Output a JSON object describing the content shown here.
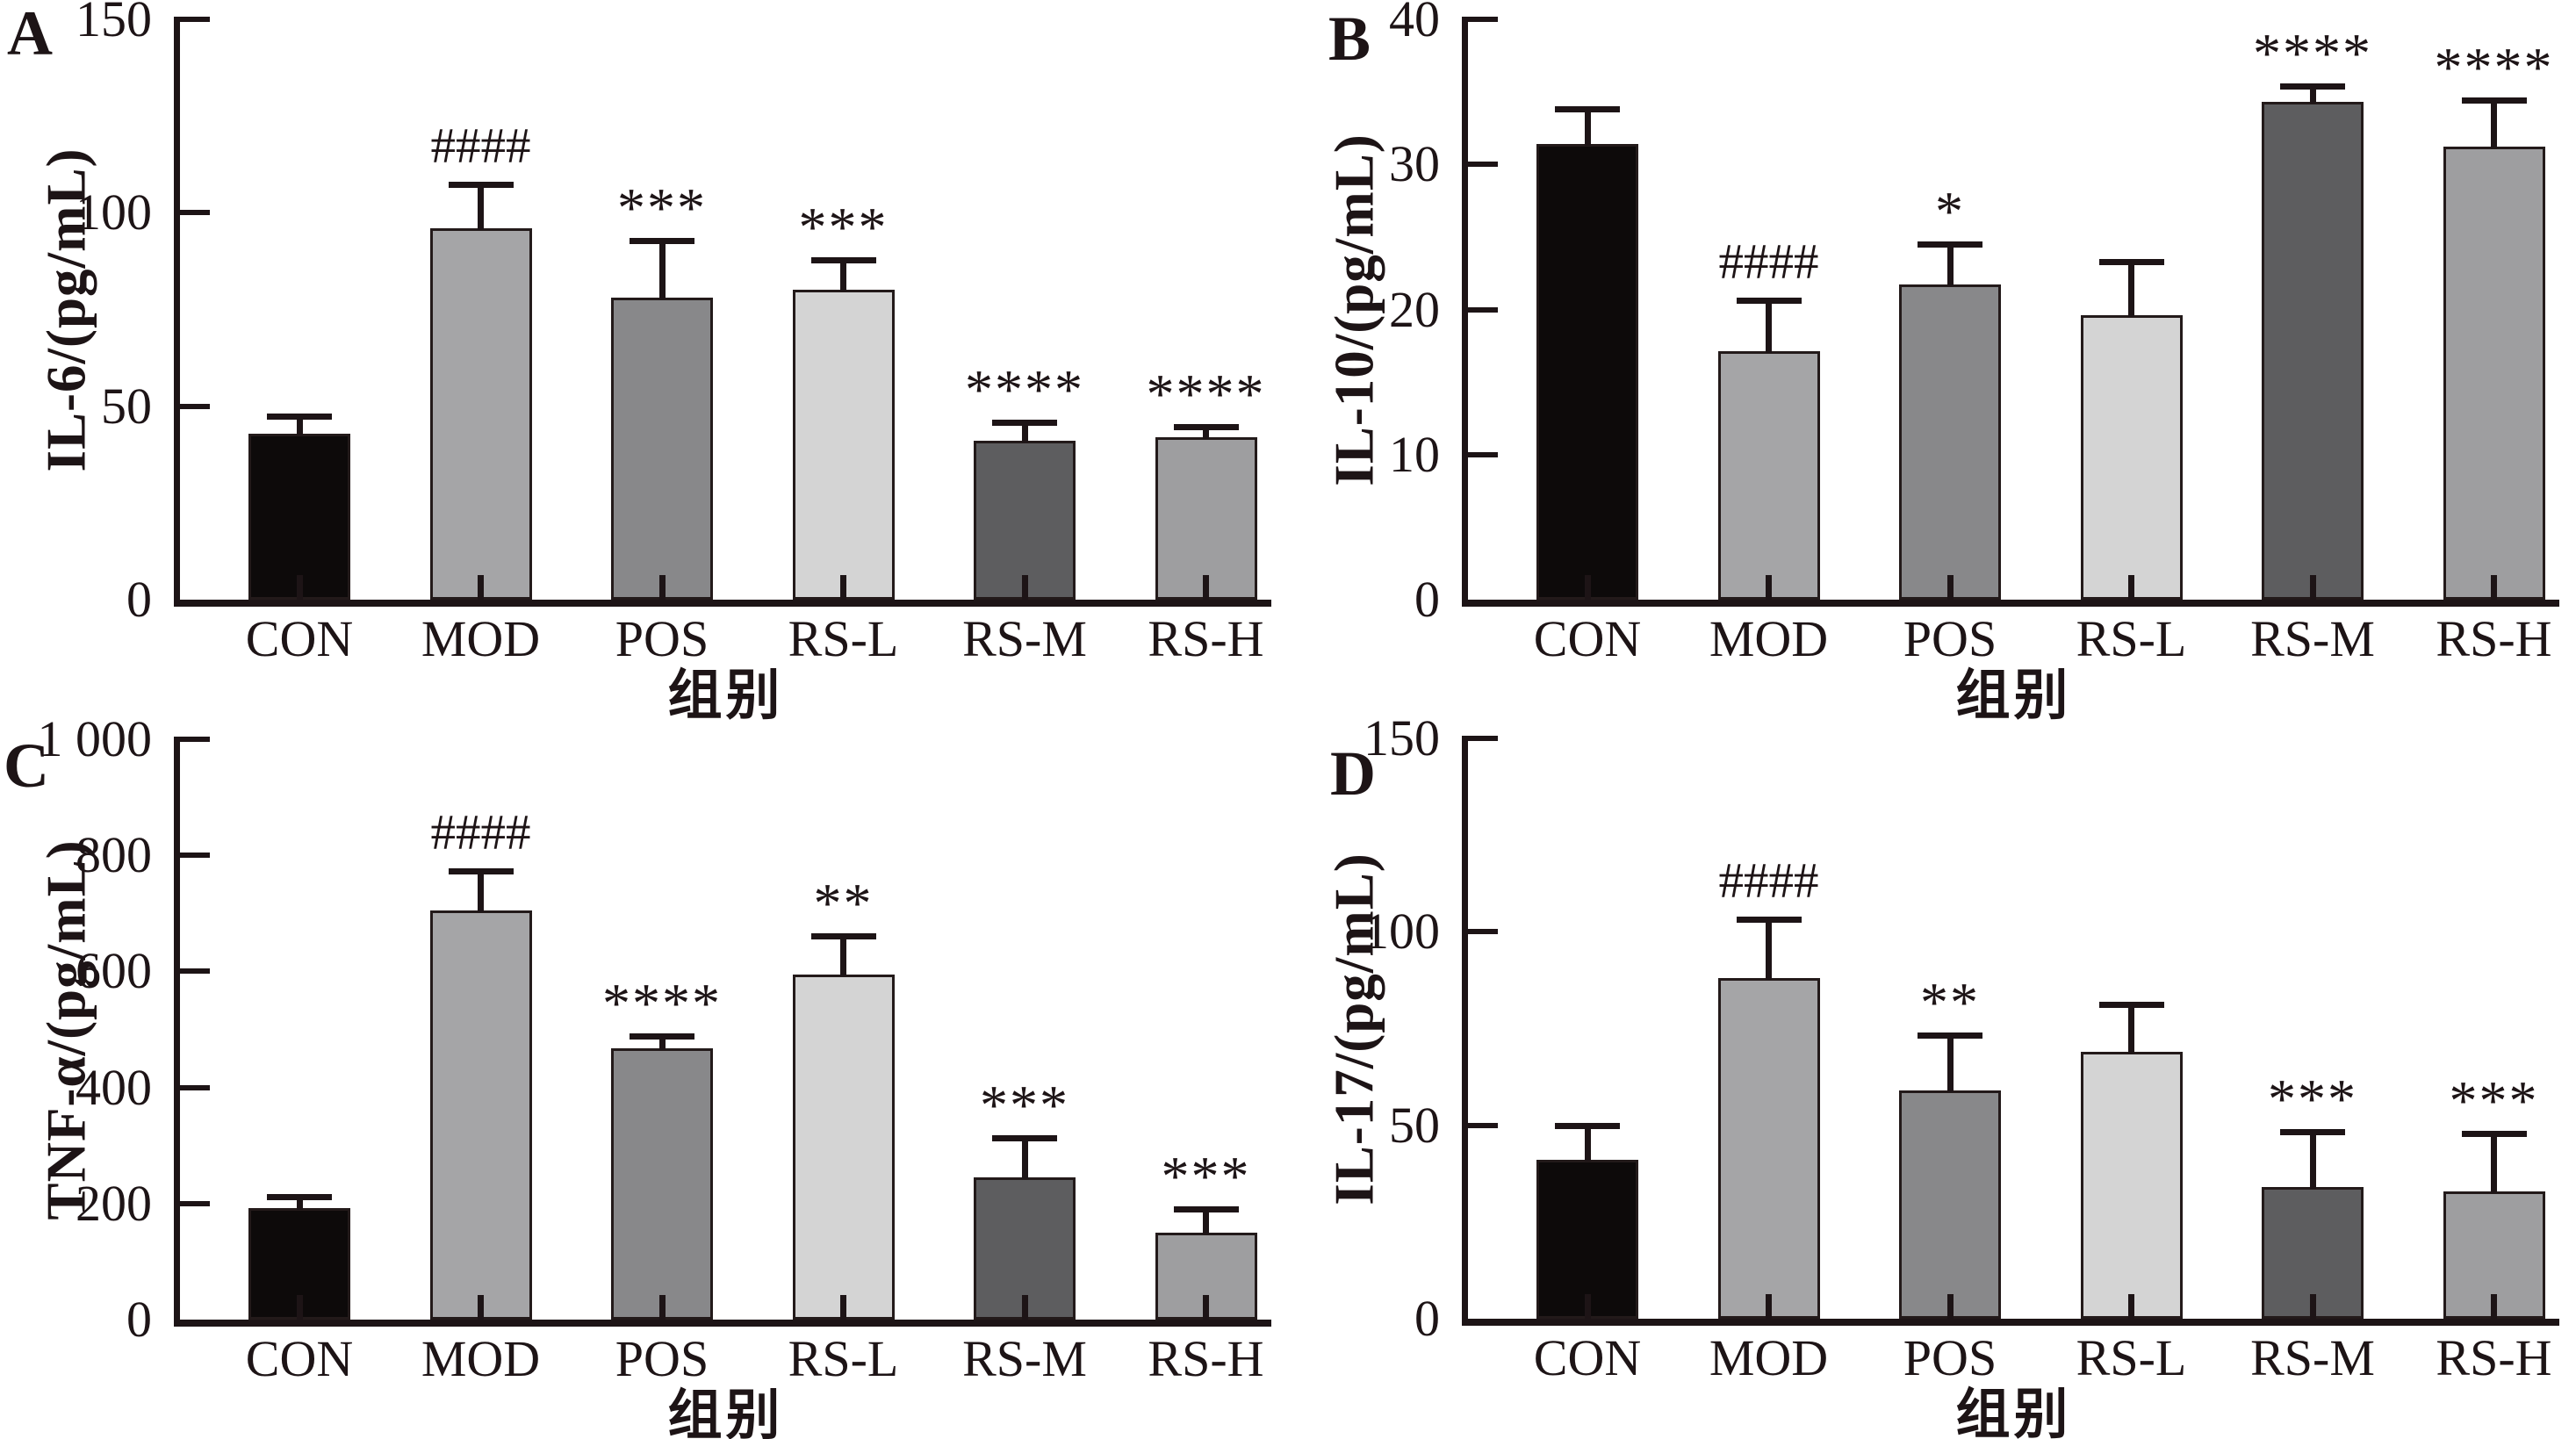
{
  "figure": {
    "background": "#ffffff",
    "categories": [
      "CON",
      "MOD",
      "POS",
      "RS-L",
      "RS-M",
      "RS-H"
    ],
    "bar_colors": [
      "#0d0a0a",
      "#a5a5a7",
      "#88888a",
      "#d4d4d4",
      "#5d5d5f",
      "#9e9ea0"
    ],
    "bar_border_color": "#231a1a",
    "axis_color": "#1d1416"
  },
  "chart_data": [
    {
      "panel": "A",
      "type": "bar",
      "title": "",
      "ylabel": "IL-6/(pg/mL)",
      "xlabel": "组别",
      "ylim": [
        0,
        150
      ],
      "yticks": [
        0,
        50,
        100,
        150
      ],
      "ytick_labels": [
        "0",
        "50",
        "100",
        "150"
      ],
      "grid": false,
      "legend": "none",
      "categories": [
        "CON",
        "MOD",
        "POS",
        "RS-L",
        "RS-M",
        "RS-H"
      ],
      "values": [
        43,
        96,
        78,
        80,
        41,
        42
      ],
      "errors": [
        5,
        12,
        15.5,
        8.5,
        5.5,
        3.5
      ],
      "significance": [
        "",
        "####",
        "***",
        "***",
        "****",
        "****"
      ]
    },
    {
      "panel": "B",
      "type": "bar",
      "title": "",
      "ylabel": "IL-10/(pg/mL)",
      "xlabel": "组别",
      "ylim": [
        0,
        40
      ],
      "yticks": [
        0,
        10,
        20,
        30,
        40
      ],
      "ytick_labels": [
        "0",
        "10",
        "20",
        "30",
        "40"
      ],
      "grid": false,
      "legend": "none",
      "categories": [
        "CON",
        "MOD",
        "POS",
        "RS-L",
        "RS-M",
        "RS-H"
      ],
      "values": [
        31.4,
        17.1,
        21.7,
        19.6,
        34.3,
        31.2
      ],
      "errors": [
        2.6,
        3.7,
        3.0,
        3.9,
        1.3,
        3.4
      ],
      "significance": [
        "",
        "####",
        "*",
        "",
        "****",
        "****"
      ]
    },
    {
      "panel": "C",
      "type": "bar",
      "title": "",
      "ylabel": "TNF-α/(pg/mL)",
      "xlabel": "组别",
      "ylim": [
        0,
        1000
      ],
      "yticks": [
        0,
        200,
        400,
        600,
        800,
        1000
      ],
      "ytick_labels": [
        "0",
        "200",
        "400",
        "600",
        "800",
        "1 000"
      ],
      "grid": false,
      "legend": "none",
      "categories": [
        "CON",
        "MOD",
        "POS",
        "RS-L",
        "RS-M",
        "RS-H"
      ],
      "values": [
        192,
        705,
        468,
        595,
        245,
        150
      ],
      "errors": [
        24,
        72,
        25,
        70,
        72,
        45
      ],
      "significance": [
        "",
        "####",
        "****",
        "**",
        "***",
        "***"
      ]
    },
    {
      "panel": "D",
      "type": "bar",
      "title": "",
      "ylabel": "IL-17/(pg/mL)",
      "xlabel": "组别",
      "ylim": [
        0,
        150
      ],
      "yticks": [
        0,
        50,
        100,
        150
      ],
      "ytick_labels": [
        "0",
        "50",
        "100",
        "150"
      ],
      "grid": false,
      "legend": "none",
      "categories": [
        "CON",
        "MOD",
        "POS",
        "RS-L",
        "RS-M",
        "RS-H"
      ],
      "values": [
        41,
        88,
        59,
        69,
        34,
        33
      ],
      "errors": [
        9.5,
        16,
        15,
        13,
        15,
        15.5
      ],
      "significance": [
        "",
        "####",
        "**",
        "",
        "***",
        "***"
      ]
    }
  ]
}
